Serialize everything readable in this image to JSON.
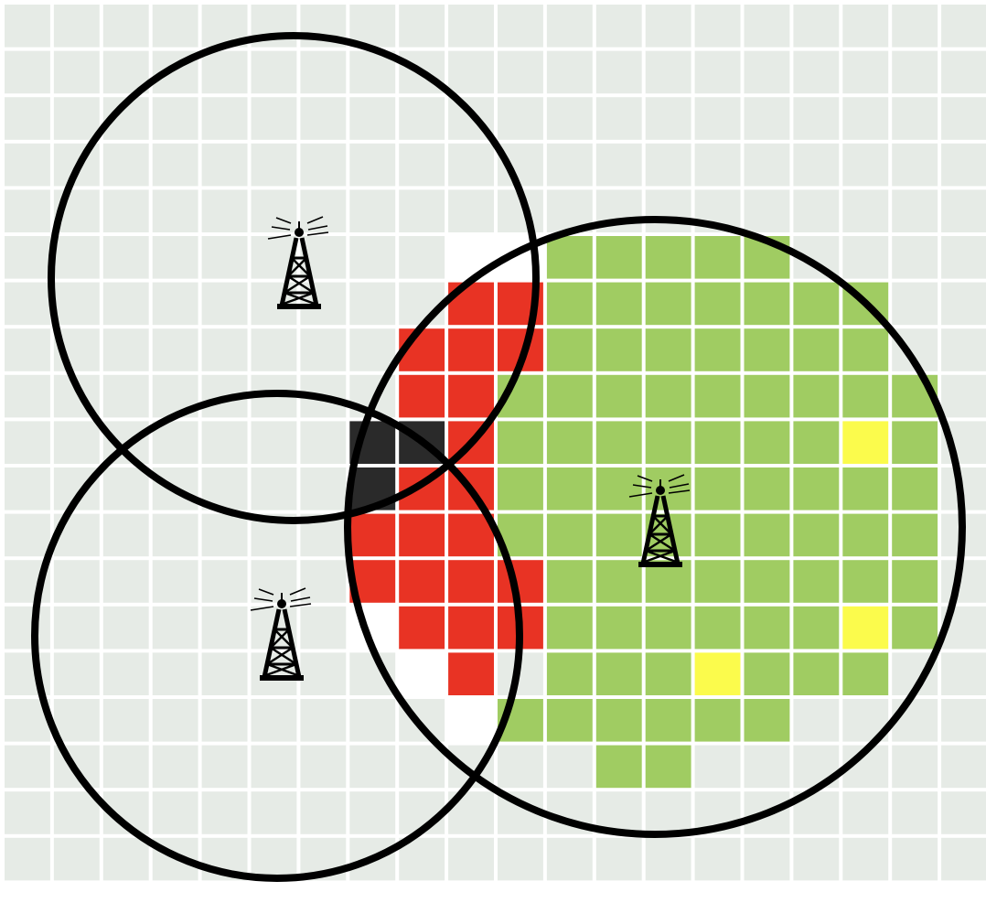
{
  "grid": {
    "rows": 19,
    "cols": 20,
    "background_color": "#ffffff",
    "default_cell_color": "#e6ebe6"
  },
  "colors": {
    "gray": "#e6ebe6",
    "white": "#ffffff",
    "red": "#e83324",
    "green": "#a0cc62",
    "yellow": "#fbfb4c",
    "black": "#2a2a2a",
    "circle_stroke": "#000000"
  },
  "cell_groups": {
    "white": [
      [
        5,
        9
      ],
      [
        5,
        10
      ],
      [
        13,
        7
      ],
      [
        14,
        8
      ],
      [
        15,
        9
      ]
    ],
    "red": [
      [
        6,
        9
      ],
      [
        6,
        10
      ],
      [
        7,
        8
      ],
      [
        7,
        9
      ],
      [
        7,
        10
      ],
      [
        8,
        8
      ],
      [
        8,
        9
      ],
      [
        9,
        9
      ],
      [
        10,
        8
      ],
      [
        10,
        9
      ],
      [
        11,
        7
      ],
      [
        11,
        8
      ],
      [
        11,
        9
      ],
      [
        12,
        7
      ],
      [
        12,
        8
      ],
      [
        12,
        9
      ],
      [
        12,
        10
      ],
      [
        13,
        8
      ],
      [
        13,
        9
      ],
      [
        13,
        10
      ],
      [
        14,
        9
      ]
    ],
    "black": [
      [
        9,
        7
      ],
      [
        9,
        8
      ],
      [
        10,
        7
      ]
    ],
    "green": [
      [
        5,
        11
      ],
      [
        5,
        12
      ],
      [
        5,
        13
      ],
      [
        5,
        14
      ],
      [
        5,
        15
      ],
      [
        6,
        11
      ],
      [
        6,
        12
      ],
      [
        6,
        13
      ],
      [
        6,
        14
      ],
      [
        6,
        15
      ],
      [
        6,
        16
      ],
      [
        6,
        17
      ],
      [
        7,
        11
      ],
      [
        7,
        12
      ],
      [
        7,
        13
      ],
      [
        7,
        14
      ],
      [
        7,
        15
      ],
      [
        7,
        16
      ],
      [
        7,
        17
      ],
      [
        8,
        10
      ],
      [
        8,
        11
      ],
      [
        8,
        12
      ],
      [
        8,
        13
      ],
      [
        8,
        14
      ],
      [
        8,
        15
      ],
      [
        8,
        16
      ],
      [
        8,
        17
      ],
      [
        8,
        18
      ],
      [
        9,
        10
      ],
      [
        9,
        11
      ],
      [
        9,
        12
      ],
      [
        9,
        13
      ],
      [
        9,
        14
      ],
      [
        9,
        15
      ],
      [
        9,
        16
      ],
      [
        9,
        18
      ],
      [
        10,
        10
      ],
      [
        10,
        11
      ],
      [
        10,
        12
      ],
      [
        10,
        13
      ],
      [
        10,
        14
      ],
      [
        10,
        15
      ],
      [
        10,
        16
      ],
      [
        10,
        17
      ],
      [
        10,
        18
      ],
      [
        11,
        10
      ],
      [
        11,
        11
      ],
      [
        11,
        12
      ],
      [
        11,
        13
      ],
      [
        11,
        14
      ],
      [
        11,
        15
      ],
      [
        11,
        16
      ],
      [
        11,
        17
      ],
      [
        11,
        18
      ],
      [
        12,
        11
      ],
      [
        12,
        12
      ],
      [
        12,
        13
      ],
      [
        12,
        14
      ],
      [
        12,
        15
      ],
      [
        12,
        16
      ],
      [
        12,
        17
      ],
      [
        12,
        18
      ],
      [
        13,
        11
      ],
      [
        13,
        12
      ],
      [
        13,
        13
      ],
      [
        13,
        14
      ],
      [
        13,
        15
      ],
      [
        13,
        16
      ],
      [
        13,
        17
      ],
      [
        13,
        18
      ],
      [
        14,
        11
      ],
      [
        14,
        12
      ],
      [
        14,
        13
      ],
      [
        14,
        15
      ],
      [
        14,
        16
      ],
      [
        14,
        17
      ],
      [
        15,
        10
      ],
      [
        15,
        11
      ],
      [
        15,
        12
      ],
      [
        15,
        13
      ],
      [
        15,
        14
      ],
      [
        15,
        15
      ],
      [
        16,
        12
      ],
      [
        16,
        13
      ]
    ],
    "yellow": [
      [
        9,
        17
      ],
      [
        13,
        17
      ],
      [
        14,
        14
      ]
    ]
  },
  "towers": [
    {
      "id": "tower-top-left",
      "coverage_ring": "circle-top-left"
    },
    {
      "id": "tower-bottom-left",
      "coverage_ring": "circle-bottom-left"
    },
    {
      "id": "tower-right",
      "coverage_ring": "circle-right"
    }
  ]
}
